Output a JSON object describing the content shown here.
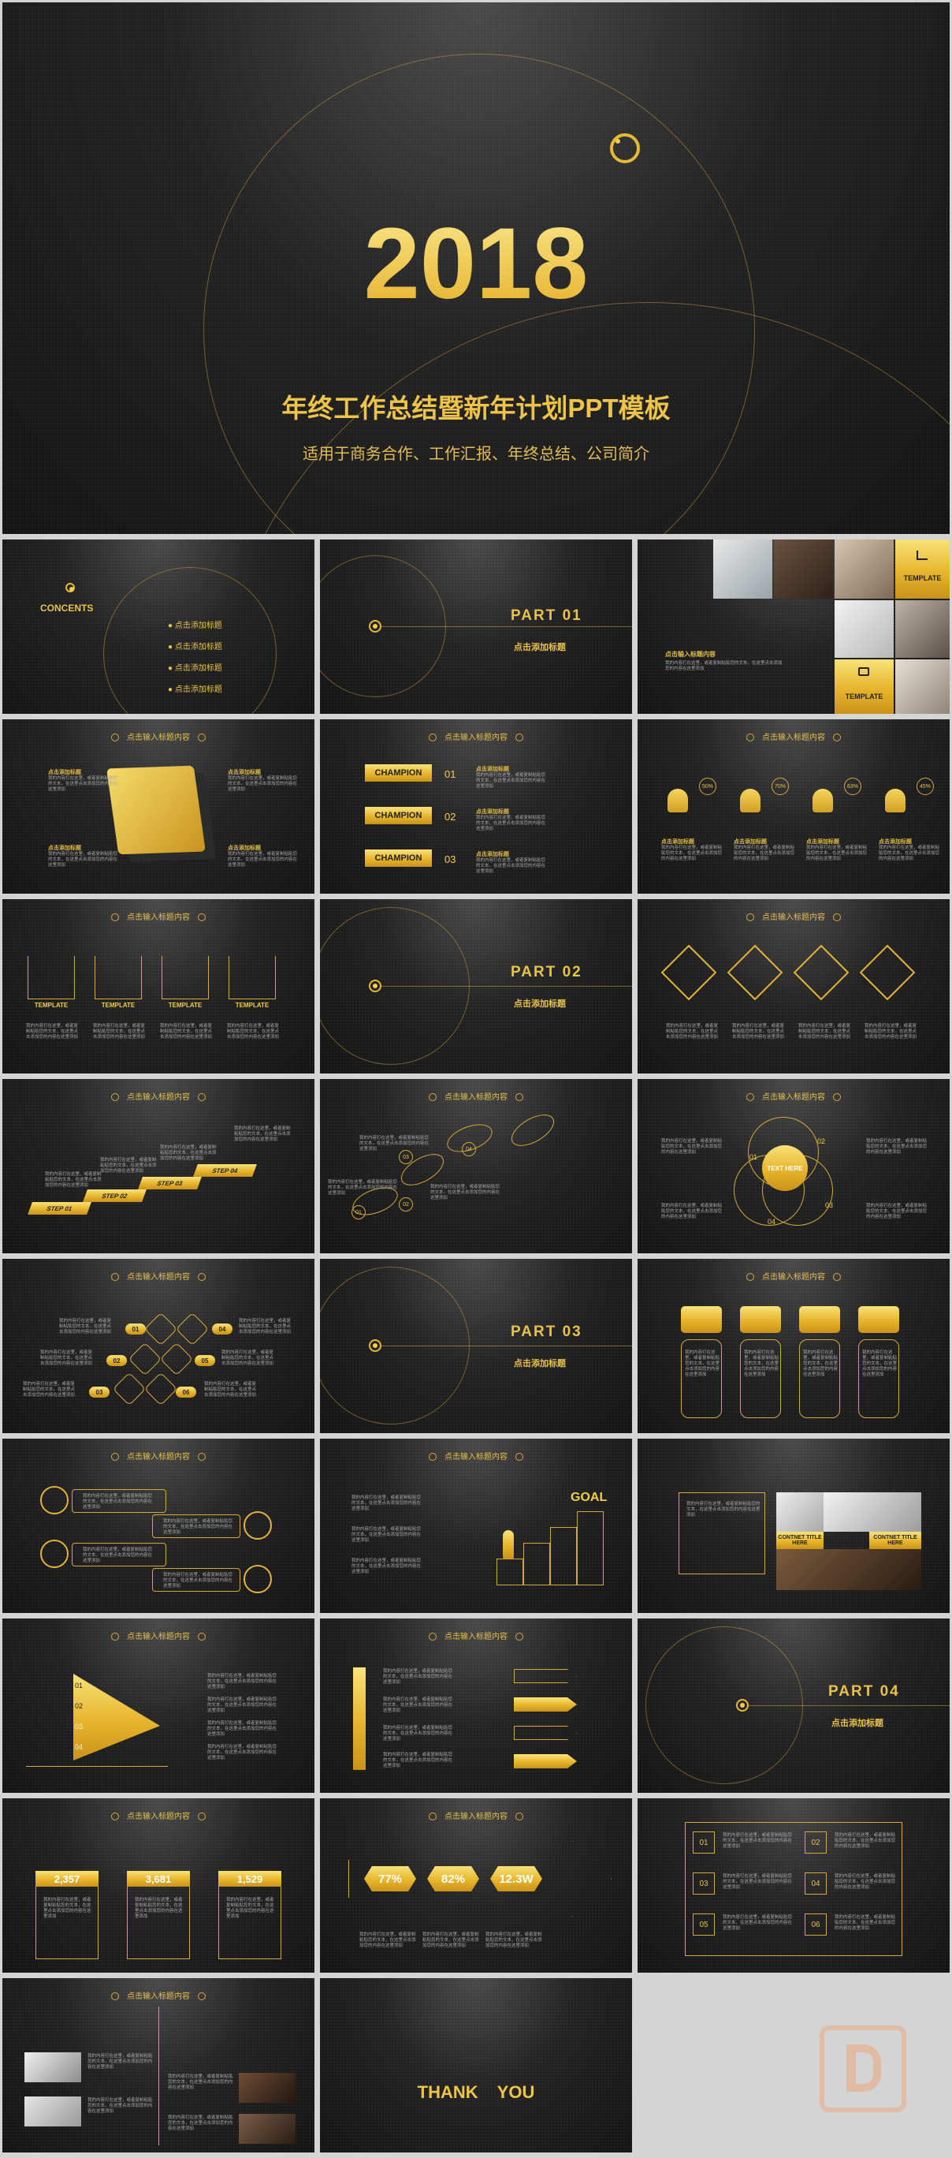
{
  "cover": {
    "year": "2018",
    "title": "年终工作总结暨新年计划PPT模板",
    "subtitle": "适用于商务合作、工作汇报、年终总结、公司简介"
  },
  "common": {
    "slide_title": "点击输入标题内容",
    "add_title": "点击添加标题",
    "click_title": "点击添加标题",
    "body_text": "我的内容打在这里，或者复制粘贴您的文本，在这里点击添加您的内容在这里添加"
  },
  "contents": {
    "heading": "CONCENTS",
    "items": [
      "点击添加标题",
      "点击添加标题",
      "点击添加标题",
      "点击添加标题"
    ]
  },
  "parts": [
    {
      "label": "PART  01",
      "sub": "点击添加标题"
    },
    {
      "label": "PART  02",
      "sub": "点击添加标题"
    },
    {
      "label": "PART  03",
      "sub": "点击添加标题"
    },
    {
      "label": "PART  04",
      "sub": "点击添加标题"
    }
  ],
  "template_slide": {
    "tile_label": "TEMPLATE",
    "heading": "点击输入标题内容"
  },
  "champion": [
    "CHAMPION",
    "CHAMPION",
    "CHAMPION"
  ],
  "champion_nums": [
    "01",
    "02",
    "03"
  ],
  "percents": [
    "50%",
    "70%",
    "63%",
    "45%"
  ],
  "template_labels": [
    "TEMPLATE",
    "TEMPLATE",
    "TEMPLATE",
    "TEMPLATE"
  ],
  "steps": [
    "STEP  01",
    "STEP  02",
    "STEP  03",
    "STEP  04"
  ],
  "feet_nums": [
    "01",
    "02",
    "03",
    "04"
  ],
  "venn": {
    "center": "TEXT  HERE",
    "nums": [
      "01",
      "02",
      "03",
      "04"
    ]
  },
  "hex_nums": [
    "01",
    "02",
    "03",
    "04",
    "05",
    "06"
  ],
  "goal": "GOAL",
  "contnet": [
    "CONTNET TITLE  HERE",
    "CONTNET TITLE  HERE"
  ],
  "pyramid_nums": [
    "01",
    "02",
    "03",
    "04"
  ],
  "stat_values": [
    "2,357",
    "3,681",
    "1,529"
  ],
  "hex_stats": [
    "77%",
    "82%",
    "12.3W"
  ],
  "grid_nums": [
    "01",
    "02",
    "03",
    "04",
    "05",
    "06"
  ],
  "thanks": "THANK    YOU"
}
